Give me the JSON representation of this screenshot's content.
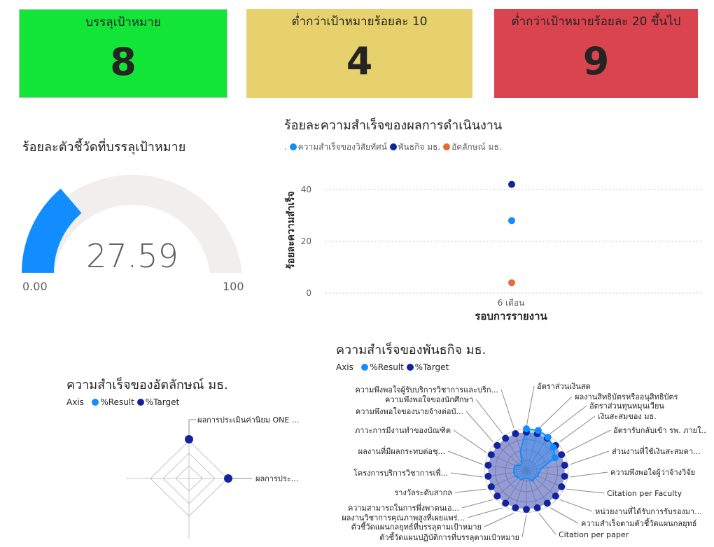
{
  "kpis": [
    {
      "title": "บรรลุเป้าหมาย",
      "value": "8",
      "color": "#12e538"
    },
    {
      "title": "ต่ำกว่าเป้าหมายร้อยละ 10",
      "value": "4",
      "color": "#e6d16c"
    },
    {
      "title": "ต่ำกว่าเป้าหมายร้อยละ 20 ขึ้นไป",
      "value": "9",
      "color": "#d9444f"
    }
  ],
  "gauge": {
    "title": "ร้อยละตัวชี้วัดที่บรรลุเป้าหมาย",
    "value_label": "27.59",
    "min_label": "0.00",
    "max_label": "100",
    "fill_color": "#118dff",
    "track_color": "#f0efee"
  },
  "performance": {
    "title": "ร้อยละความสำเร็จของผลการดำเนินงาน",
    "legend_prefix": ".",
    "legend": [
      {
        "label": "ความสำเร็จของวิสัยทัศน์",
        "color": "#118dff"
      },
      {
        "label": "พันธกิจ มธ.",
        "color": "#12239e"
      },
      {
        "label": "อัตลักษณ์ มธ.",
        "color": "#e66c37"
      }
    ],
    "xlabel": "รอบการรายงาน",
    "ylabel": "ร้อยละความสำเร็จ",
    "x_tick": "6 เดือน",
    "y_ticks": [
      "0",
      "20",
      "40"
    ]
  },
  "identity_radar": {
    "title": "ความสำเร็จของอัตลักษณ์ มธ.",
    "legend_axis": "Axis",
    "legend": [
      {
        "label": "%Result",
        "color": "#118dff"
      },
      {
        "label": "%Target",
        "color": "#12239e"
      }
    ],
    "labels": [
      "ผลการประเมินค่านิยม ONE ...",
      "ผลการประ..."
    ]
  },
  "mission_radar": {
    "title": "ความสำเร็จของพันธกิจ มธ.",
    "legend_axis": "Axis",
    "legend": [
      {
        "label": "%Result",
        "color": "#118dff"
      },
      {
        "label": "%Target",
        "color": "#12239e"
      }
    ],
    "right_labels": [
      "อัตราส่วนเงินสด",
      "ผลงานสิทธิบัตรหรืออนุสิทธิบัตร",
      "อัตราส่วนทุนหมุนเวียน",
      "เงินสะสมของ มธ.",
      "อัตรารับกลับเข้า รพ. ภายใ...",
      "ส่วนงานที่ใช้เงินสะสมดา...",
      "ความพึงพอใจผู้ว่าจ้างวิจัย",
      "Citation per Faculty",
      "หน่วยงานที่ได้รับการรับรองมา...",
      "ความสำเร็จตามตัวชี้วัดแผนกลยุทธ์",
      "Citation per paper"
    ],
    "left_labels": [
      "ความพึงพอใจผู้รับบริการวิชาการและบริก...",
      "ความพึงพอใจของนักศึกษา",
      "ความพึงพอใจของนายจ้างต่อบั...",
      "ภาวะการมีงานทำของบัณฑิต",
      "ผลงานที่มีผลกระทบต่อชุ...",
      "โครงการบริการวิชาการเพื่...",
      "รางวัลระดับสากล",
      "ความสามารถในการพึ่งพาตนเอ...",
      "ผลงานวิชาการคุณภาพสูงที่เผยแพร่...",
      "ตัวชี้วัดแผนกลยุทธ์ที่บรรลุตามเป้าหมาย",
      "ตัวชี้วัดแผนปฏิบัติการที่บรรลุตามเป้าหมาย"
    ]
  },
  "chart_data": {
    "type": "scatter",
    "title": "ร้อยละความสำเร็จของผลการดำเนินงาน",
    "xlabel": "รอบการรายงาน",
    "ylabel": "ร้อยละความสำเร็จ",
    "categories": [
      "6 เดือน"
    ],
    "ylim": [
      0,
      40
    ],
    "grid": true,
    "legend_position": "top-left",
    "series": [
      {
        "name": "ความสำเร็จของวิสัยทัศน์",
        "values": [
          28
        ],
        "color": "#118dff"
      },
      {
        "name": "พันธกิจ มธ.",
        "values": [
          42
        ],
        "color": "#12239e"
      },
      {
        "name": "อัตลักษณ์ มธ.",
        "values": [
          4
        ],
        "color": "#e66c37"
      }
    ]
  }
}
